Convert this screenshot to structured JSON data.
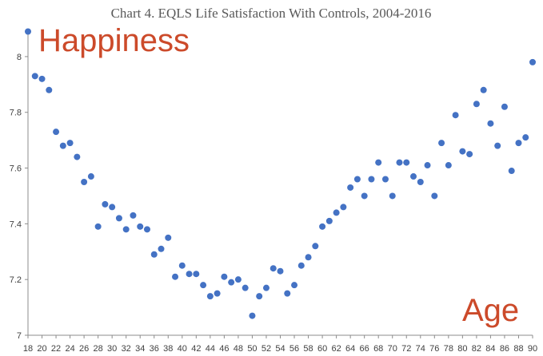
{
  "chart_data": {
    "type": "scatter",
    "title": "Chart 4.  EQLS Life Satisfaction With Controls, 2004-2016",
    "ylabel": "Happiness",
    "xlabel": "Age",
    "ylim": [
      7,
      8.1
    ],
    "yticks": [
      7,
      7.2,
      7.4,
      7.6,
      7.8,
      8
    ],
    "xlim": [
      18,
      90
    ],
    "xticks": [
      18,
      20,
      22,
      24,
      26,
      28,
      30,
      32,
      34,
      36,
      38,
      40,
      42,
      44,
      46,
      48,
      50,
      52,
      54,
      56,
      58,
      60,
      62,
      64,
      66,
      68,
      70,
      72,
      74,
      76,
      78,
      80,
      82,
      84,
      86,
      88,
      90
    ],
    "grid": false,
    "legend": "none",
    "colors": {
      "points": "#4472c4",
      "big_labels": "#cc4a2a"
    },
    "series": [
      {
        "x": [
          18,
          19,
          20,
          21,
          22,
          23,
          24,
          25,
          26,
          27,
          28,
          29,
          30,
          31,
          32,
          33,
          34,
          35,
          36,
          37,
          38,
          39,
          40,
          41,
          42,
          43,
          44,
          45,
          46,
          47,
          48,
          49,
          50,
          51,
          52,
          53,
          54,
          55,
          56,
          57,
          58,
          59,
          60,
          61,
          62,
          63,
          64,
          65,
          66,
          67,
          68,
          69,
          70,
          71,
          72,
          73,
          74,
          75,
          76,
          77,
          78,
          79,
          80,
          81,
          82,
          83,
          84,
          85,
          86,
          87,
          88,
          89,
          90
        ],
        "y": [
          8.09,
          7.93,
          7.92,
          7.88,
          7.73,
          7.68,
          7.69,
          7.64,
          7.55,
          7.57,
          7.39,
          7.47,
          7.46,
          7.42,
          7.38,
          7.43,
          7.39,
          7.38,
          7.29,
          7.31,
          7.35,
          7.21,
          7.25,
          7.22,
          7.22,
          7.18,
          7.14,
          7.15,
          7.21,
          7.19,
          7.2,
          7.17,
          7.07,
          7.14,
          7.17,
          7.24,
          7.23,
          7.15,
          7.18,
          7.25,
          7.28,
          7.32,
          7.39,
          7.41,
          7.44,
          7.46,
          7.53,
          7.56,
          7.5,
          7.56,
          7.62,
          7.56,
          7.5,
          7.62,
          7.62,
          7.57,
          7.55,
          7.61,
          7.5,
          7.69,
          7.61,
          7.79,
          7.66,
          7.65,
          7.83,
          7.88,
          7.76,
          7.68,
          7.82,
          7.59,
          7.69,
          7.71,
          7.98
        ]
      }
    ]
  }
}
